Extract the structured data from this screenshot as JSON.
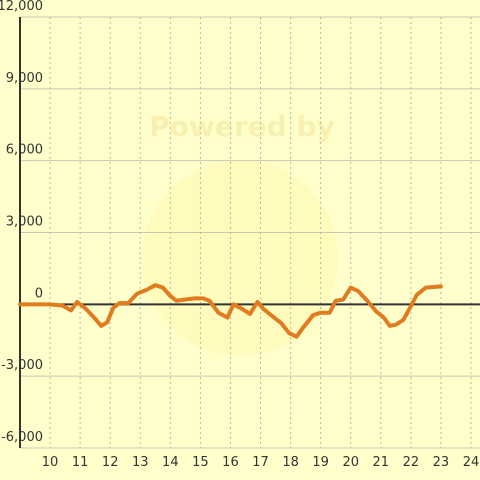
{
  "chart_data": {
    "type": "line",
    "watermark": "Powered by",
    "x": [
      9,
      10,
      10.4,
      10.7,
      10.9,
      11.2,
      11.5,
      11.7,
      11.9,
      12.1,
      12.3,
      12.6,
      12.9,
      13.2,
      13.5,
      13.75,
      14.0,
      14.2,
      14.5,
      14.8,
      15.1,
      15.3,
      15.6,
      15.9,
      16.1,
      16.4,
      16.65,
      16.9,
      17.1,
      17.4,
      17.7,
      17.95,
      18.2,
      18.4,
      18.75,
      19.0,
      19.3,
      19.5,
      19.75,
      20.0,
      20.25,
      20.55,
      20.85,
      21.1,
      21.3,
      21.5,
      21.75,
      21.95,
      22.2,
      22.5,
      23.0
    ],
    "series": [
      {
        "color": "#e07b20",
        "values": [
          0,
          0,
          -50,
          -250,
          100,
          -200,
          -600,
          -900,
          -750,
          -150,
          50,
          50,
          450,
          600,
          800,
          700,
          350,
          150,
          200,
          250,
          250,
          150,
          -350,
          -550,
          0,
          -200,
          -400,
          100,
          -200,
          -500,
          -800,
          -1200,
          -1350,
          -1000,
          -450,
          -350,
          -350,
          150,
          200,
          700,
          550,
          150,
          -300,
          -550,
          -900,
          -850,
          -650,
          -200,
          400,
          700,
          750
        ]
      }
    ],
    "xlim": [
      9,
      24.3
    ],
    "xticks": [
      10,
      11,
      12,
      13,
      14,
      15,
      16,
      17,
      18,
      19,
      20,
      21,
      22,
      23,
      24
    ],
    "ylim": [
      -6000,
      12000
    ],
    "yticks": [
      {
        "value": -6000,
        "label": "-6,000"
      },
      {
        "value": -3000,
        "label": "-3,000"
      },
      0,
      {
        "value": 3000,
        "label": "3,000"
      },
      {
        "value": 6000,
        "label": "6,000"
      },
      {
        "value": 9000,
        "label": "9,000"
      },
      {
        "value": 12000,
        "label": "12,000"
      }
    ],
    "grid": true
  }
}
